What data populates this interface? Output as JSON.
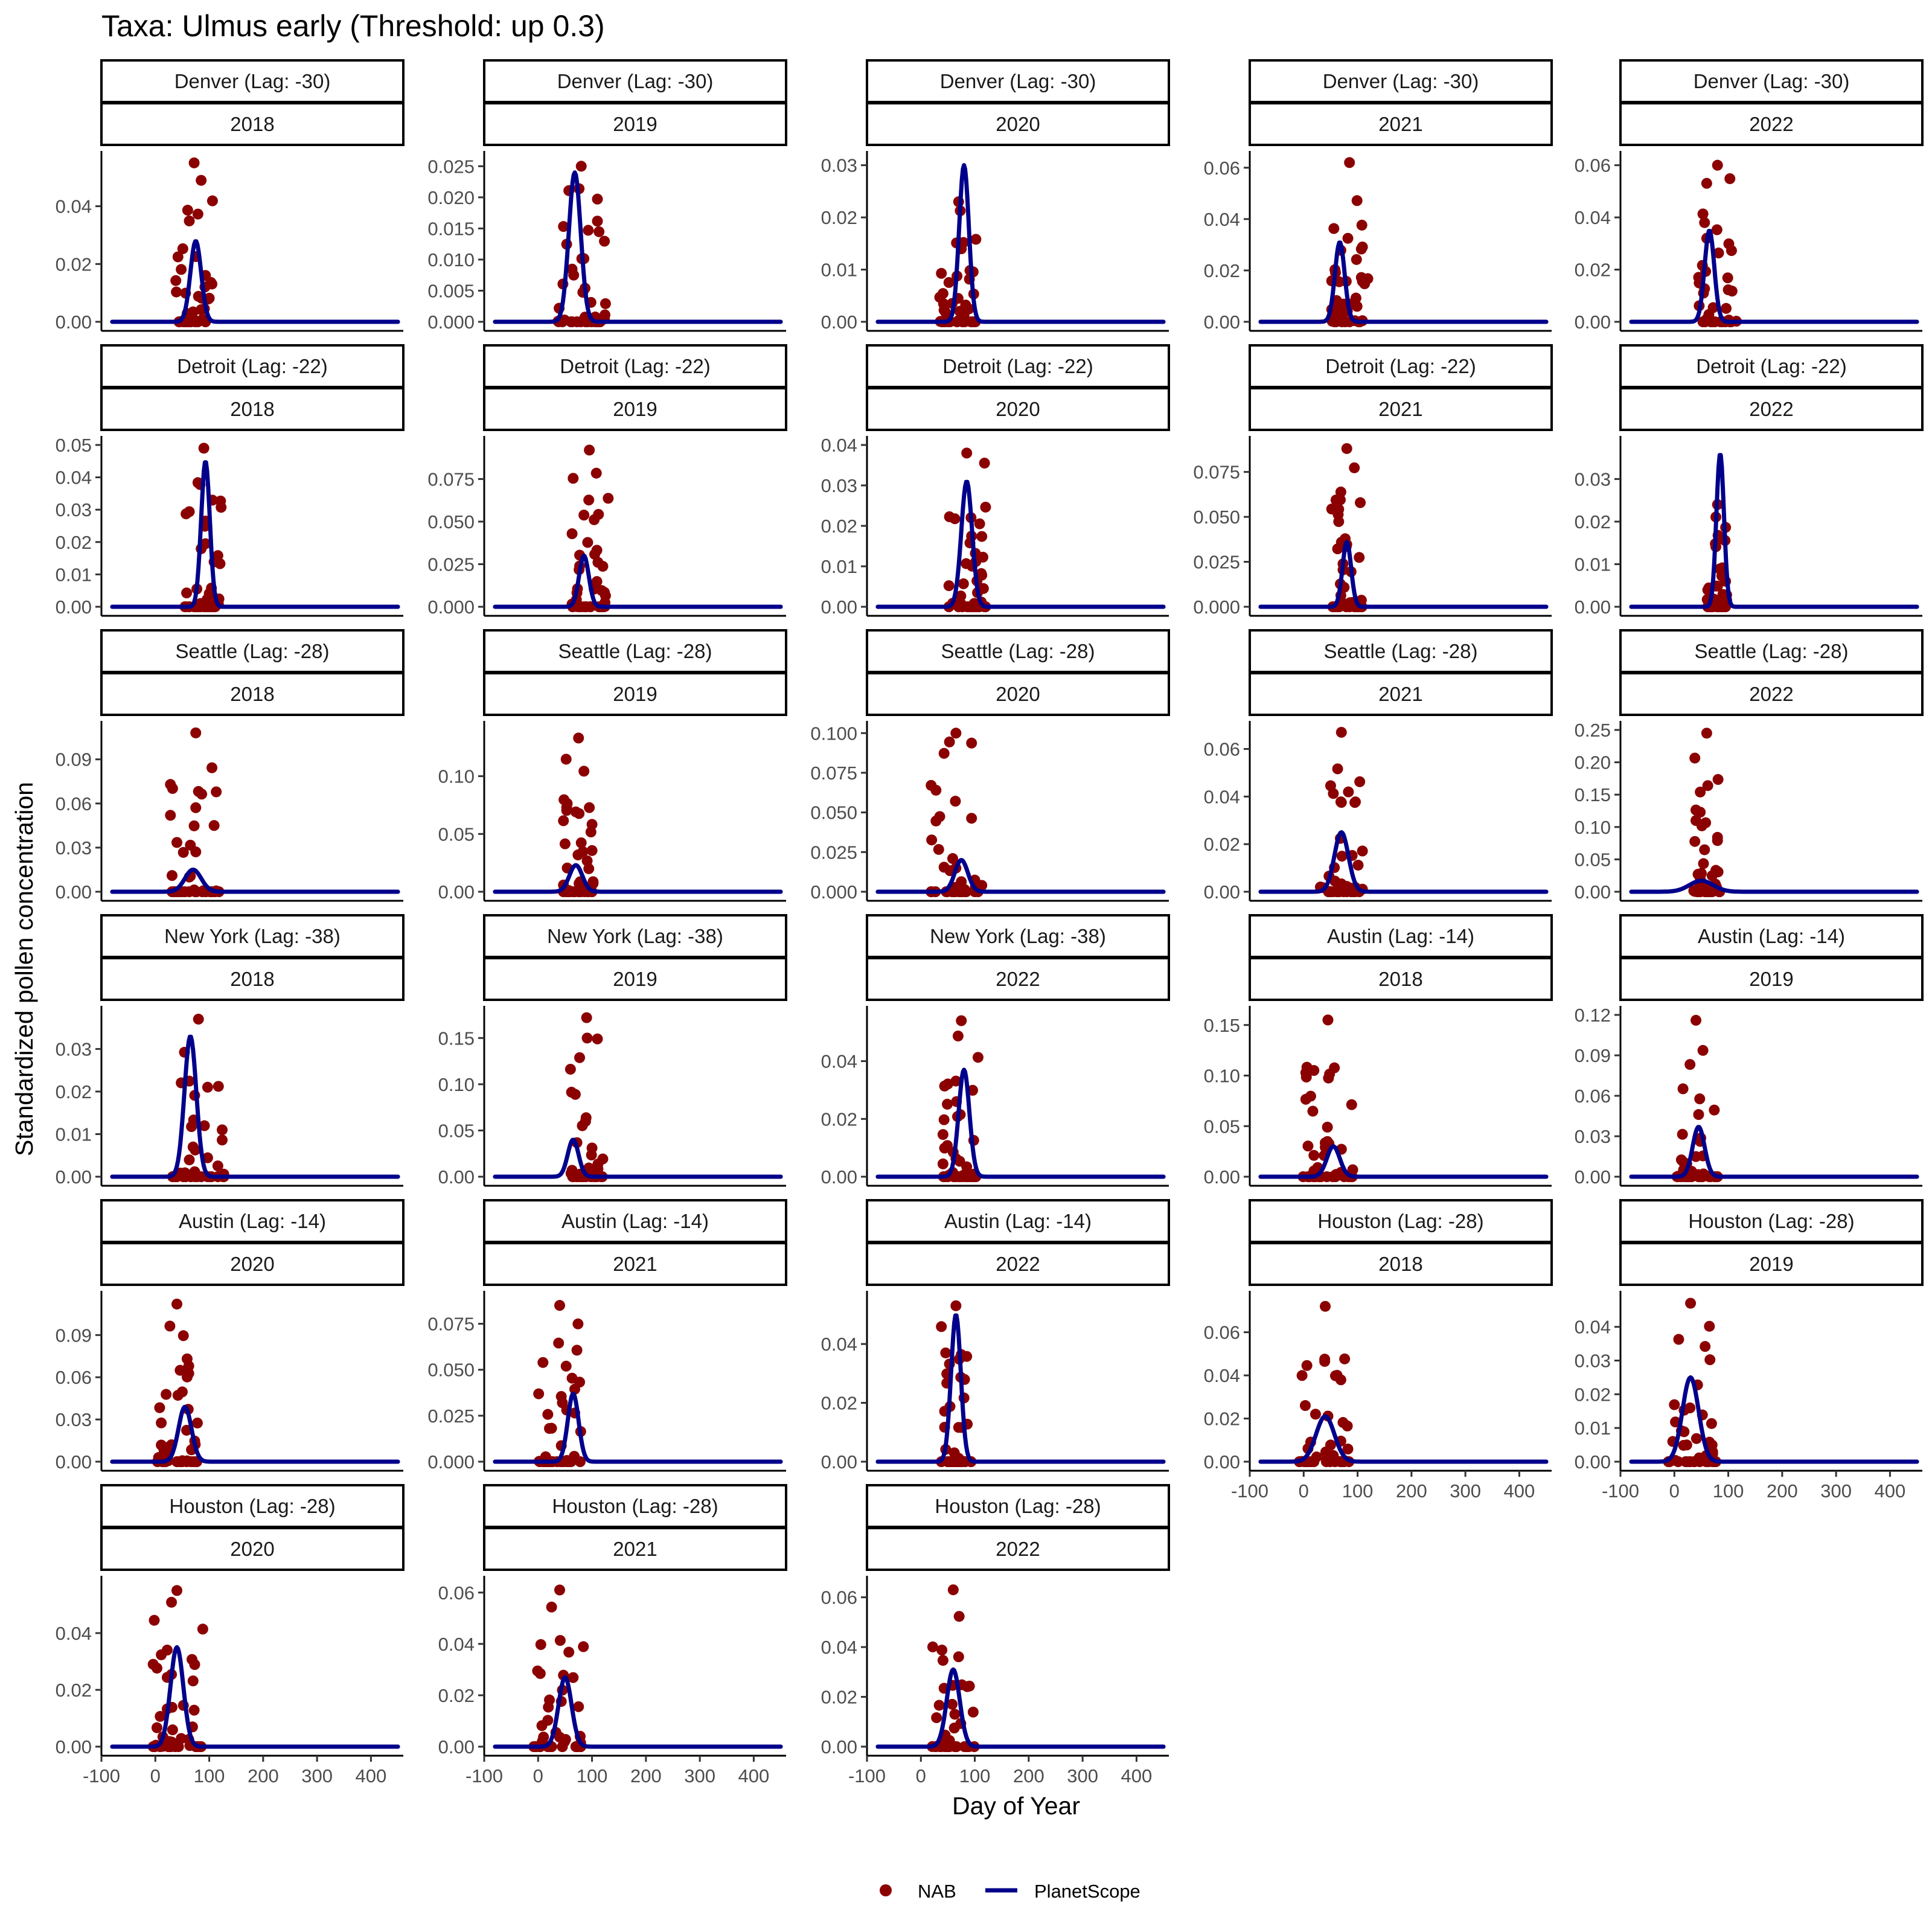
{
  "chart_data": {
    "type": "line",
    "title": "Taxa: Ulmus early (Threshold: up 0.3)",
    "xlabel": "Day of Year",
    "ylabel": "Standardized pollen concentration",
    "xlim": [
      -100,
      460
    ],
    "x_ticks": [
      -100,
      0,
      100,
      200,
      300,
      400
    ],
    "series_names": {
      "nab": "NAB",
      "planetscope": "PlanetScope"
    },
    "colors": {
      "nab": "#8b0000",
      "planetscope": "#00008b"
    },
    "legend_position": "bottom",
    "grid": false,
    "panels": [
      {
        "site": "Denver (Lag: -30)",
        "year": "2018",
        "ylim": [
          0,
          0.056
        ],
        "yticks": [
          "0.00",
          "0.02",
          "0.04"
        ],
        "ps_peak_day": 75,
        "ps_peak": 0.028,
        "ps_width": 10,
        "nab_peak_day": 72,
        "nab_max": 0.055,
        "nab_spread": 22
      },
      {
        "site": "Denver (Lag: -30)",
        "year": "2019",
        "ylim": [
          0,
          0.026
        ],
        "yticks": [
          "0.000",
          "0.005",
          "0.010",
          "0.015",
          "0.020",
          "0.025"
        ],
        "ps_peak_day": 68,
        "ps_peak": 0.024,
        "ps_width": 11,
        "nab_peak_day": 80,
        "nab_max": 0.025,
        "nab_spread": 30
      },
      {
        "site": "Denver (Lag: -30)",
        "year": "2020",
        "ylim": [
          0,
          0.031
        ],
        "yticks": [
          "0.00",
          "0.01",
          "0.02",
          "0.03"
        ],
        "ps_peak_day": 80,
        "ps_peak": 0.03,
        "ps_width": 9,
        "nab_peak_day": 70,
        "nab_max": 0.023,
        "nab_spread": 22
      },
      {
        "site": "Denver (Lag: -30)",
        "year": "2021",
        "ylim": [
          0,
          0.063
        ],
        "yticks": [
          "0.00",
          "0.02",
          "0.04",
          "0.06"
        ],
        "ps_peak_day": 67,
        "ps_peak": 0.031,
        "ps_width": 9,
        "nab_peak_day": 85,
        "nab_max": 0.062,
        "nab_spread": 22
      },
      {
        "site": "Denver (Lag: -30)",
        "year": "2022",
        "ylim": [
          0,
          0.062
        ],
        "yticks": [
          "0.00",
          "0.02",
          "0.04",
          "0.06"
        ],
        "ps_peak_day": 65,
        "ps_peak": 0.035,
        "ps_width": 9,
        "nab_peak_day": 80,
        "nab_max": 0.06,
        "nab_spread": 22
      },
      {
        "site": "Detroit (Lag: -22)",
        "year": "2018",
        "ylim": [
          0,
          0.05
        ],
        "yticks": [
          "0.00",
          "0.01",
          "0.02",
          "0.03",
          "0.04",
          "0.05"
        ],
        "ps_peak_day": 93,
        "ps_peak": 0.045,
        "ps_width": 8,
        "nab_peak_day": 90,
        "nab_max": 0.049,
        "nab_spread": 22
      },
      {
        "site": "Detroit (Lag: -22)",
        "year": "2019",
        "ylim": [
          0,
          0.095
        ],
        "yticks": [
          "0.000",
          "0.025",
          "0.050",
          "0.075"
        ],
        "ps_peak_day": 85,
        "ps_peak": 0.03,
        "ps_width": 9,
        "nab_peak_day": 95,
        "nab_max": 0.092,
        "nab_spread": 22
      },
      {
        "site": "Detroit (Lag: -22)",
        "year": "2020",
        "ylim": [
          0,
          0.04
        ],
        "yticks": [
          "0.00",
          "0.01",
          "0.02",
          "0.03",
          "0.04"
        ],
        "ps_peak_day": 85,
        "ps_peak": 0.031,
        "ps_width": 10,
        "nab_peak_day": 85,
        "nab_max": 0.038,
        "nab_spread": 22
      },
      {
        "site": "Detroit (Lag: -22)",
        "year": "2021",
        "ylim": [
          0,
          0.09
        ],
        "yticks": [
          "0.000",
          "0.025",
          "0.050",
          "0.075"
        ],
        "ps_peak_day": 80,
        "ps_peak": 0.036,
        "ps_width": 8,
        "nab_peak_day": 80,
        "nab_max": 0.088,
        "nab_spread": 18
      },
      {
        "site": "Detroit (Lag: -22)",
        "year": "2022",
        "ylim": [
          0,
          0.038
        ],
        "yticks": [
          "0.00",
          "0.01",
          "0.02",
          "0.03"
        ],
        "ps_peak_day": 85,
        "ps_peak": 0.036,
        "ps_width": 7,
        "nab_peak_day": 80,
        "nab_max": 0.024,
        "nab_spread": 12
      },
      {
        "site": "Seattle (Lag: -28)",
        "year": "2018",
        "ylim": [
          0,
          0.11
        ],
        "yticks": [
          "0.00",
          "0.03",
          "0.06",
          "0.09"
        ],
        "ps_peak_day": 70,
        "ps_peak": 0.015,
        "ps_width": 15,
        "nab_peak_day": 75,
        "nab_max": 0.108,
        "nab_spread": 30
      },
      {
        "site": "Seattle (Lag: -28)",
        "year": "2019",
        "ylim": [
          0,
          0.14
        ],
        "yticks": [
          "0.00",
          "0.05",
          "0.10"
        ],
        "ps_peak_day": 70,
        "ps_peak": 0.023,
        "ps_width": 12,
        "nab_peak_day": 75,
        "nab_max": 0.133,
        "nab_spread": 18
      },
      {
        "site": "Seattle (Lag: -28)",
        "year": "2020",
        "ylim": [
          0,
          0.102
        ],
        "yticks": [
          "0.000",
          "0.025",
          "0.050",
          "0.075",
          "0.100"
        ],
        "ps_peak_day": 75,
        "ps_peak": 0.02,
        "ps_width": 12,
        "nab_peak_day": 65,
        "nab_max": 0.1,
        "nab_spread": 30
      },
      {
        "site": "Seattle (Lag: -28)",
        "year": "2021",
        "ylim": [
          0,
          0.068
        ],
        "yticks": [
          "0.00",
          "0.02",
          "0.04",
          "0.06"
        ],
        "ps_peak_day": 70,
        "ps_peak": 0.025,
        "ps_width": 13,
        "nab_peak_day": 70,
        "nab_max": 0.067,
        "nab_spread": 25
      },
      {
        "site": "Seattle (Lag: -28)",
        "year": "2022",
        "ylim": [
          0,
          0.25
        ],
        "yticks": [
          "0.00",
          "0.05",
          "0.10",
          "0.15",
          "0.20",
          "0.25"
        ],
        "ps_peak_day": 50,
        "ps_peak": 0.017,
        "ps_width": 22,
        "nab_peak_day": 60,
        "nab_max": 0.245,
        "nab_spread": 15
      },
      {
        "site": "New York (Lag: -38)",
        "year": "2018",
        "ylim": [
          0,
          0.038
        ],
        "yticks": [
          "0.00",
          "0.01",
          "0.02",
          "0.03"
        ],
        "ps_peak_day": 65,
        "ps_peak": 0.033,
        "ps_width": 11,
        "nab_peak_day": 80,
        "nab_max": 0.037,
        "nab_spread": 30
      },
      {
        "site": "New York (Lag: -38)",
        "year": "2019",
        "ylim": [
          0,
          0.175
        ],
        "yticks": [
          "0.00",
          "0.05",
          "0.10",
          "0.15"
        ],
        "ps_peak_day": 65,
        "ps_peak": 0.04,
        "ps_width": 10,
        "nab_peak_day": 90,
        "nab_max": 0.172,
        "nab_spread": 20
      },
      {
        "site": "New York (Lag: -38)",
        "year": "2022",
        "ylim": [
          0,
          0.056
        ],
        "yticks": [
          "0.00",
          "0.02",
          "0.04"
        ],
        "ps_peak_day": 80,
        "ps_peak": 0.037,
        "ps_width": 10,
        "nab_peak_day": 75,
        "nab_max": 0.054,
        "nab_spread": 22
      },
      {
        "site": "Austin (Lag: -14)",
        "year": "2018",
        "ylim": [
          0,
          0.16
        ],
        "yticks": [
          "0.00",
          "0.05",
          "0.10",
          "0.15"
        ],
        "ps_peak_day": 55,
        "ps_peak": 0.03,
        "ps_width": 12,
        "nab_peak_day": 45,
        "nab_max": 0.155,
        "nab_spread": 30
      },
      {
        "site": "Austin (Lag: -14)",
        "year": "2019",
        "ylim": [
          0,
          0.12
        ],
        "yticks": [
          "0.00",
          "0.03",
          "0.06",
          "0.09",
          "0.12"
        ],
        "ps_peak_day": 45,
        "ps_peak": 0.037,
        "ps_width": 11,
        "nab_peak_day": 40,
        "nab_max": 0.116,
        "nab_spread": 25
      },
      {
        "site": "Austin (Lag: -14)",
        "year": "2020",
        "ylim": [
          0,
          0.115
        ],
        "yticks": [
          "0.00",
          "0.03",
          "0.06",
          "0.09"
        ],
        "ps_peak_day": 55,
        "ps_peak": 0.039,
        "ps_width": 12,
        "nab_peak_day": 40,
        "nab_max": 0.112,
        "nab_spread": 25
      },
      {
        "site": "Austin (Lag: -14)",
        "year": "2021",
        "ylim": [
          0,
          0.088
        ],
        "yticks": [
          "0.000",
          "0.025",
          "0.050",
          "0.075"
        ],
        "ps_peak_day": 65,
        "ps_peak": 0.037,
        "ps_width": 10,
        "nab_peak_day": 40,
        "nab_max": 0.085,
        "nab_spread": 25
      },
      {
        "site": "Austin (Lag: -14)",
        "year": "2022",
        "ylim": [
          0,
          0.055
        ],
        "yticks": [
          "0.00",
          "0.02",
          "0.04"
        ],
        "ps_peak_day": 65,
        "ps_peak": 0.05,
        "ps_width": 9,
        "nab_peak_day": 65,
        "nab_max": 0.053,
        "nab_spread": 18
      },
      {
        "site": "Houston (Lag: -28)",
        "year": "2018",
        "ylim": [
          0,
          0.075
        ],
        "yticks": [
          "0.00",
          "0.02",
          "0.04",
          "0.06"
        ],
        "ps_peak_day": 40,
        "ps_peak": 0.021,
        "ps_width": 17,
        "nab_peak_day": 40,
        "nab_max": 0.072,
        "nab_spread": 30
      },
      {
        "site": "Houston (Lag: -28)",
        "year": "2019",
        "ylim": [
          0,
          0.048
        ],
        "yticks": [
          "0.00",
          "0.01",
          "0.02",
          "0.03",
          "0.04"
        ],
        "ps_peak_day": 30,
        "ps_peak": 0.025,
        "ps_width": 15,
        "nab_peak_day": 30,
        "nab_max": 0.047,
        "nab_spread": 30
      },
      {
        "site": "Houston (Lag: -28)",
        "year": "2020",
        "ylim": [
          0,
          0.057
        ],
        "yticks": [
          "0.00",
          "0.02",
          "0.04"
        ],
        "ps_peak_day": 40,
        "ps_peak": 0.035,
        "ps_width": 12,
        "nab_peak_day": 40,
        "nab_max": 0.055,
        "nab_spread": 30
      },
      {
        "site": "Houston (Lag: -28)",
        "year": "2021",
        "ylim": [
          0,
          0.063
        ],
        "yticks": [
          "0.00",
          "0.02",
          "0.04",
          "0.06"
        ],
        "ps_peak_day": 50,
        "ps_peak": 0.027,
        "ps_width": 12,
        "nab_peak_day": 40,
        "nab_max": 0.061,
        "nab_spread": 30
      },
      {
        "site": "Houston (Lag: -28)",
        "year": "2022",
        "ylim": [
          0,
          0.065
        ],
        "yticks": [
          "0.00",
          "0.02",
          "0.04",
          "0.06"
        ],
        "ps_peak_day": 60,
        "ps_peak": 0.031,
        "ps_width": 12,
        "nab_peak_day": 60,
        "nab_max": 0.063,
        "nab_spread": 25
      }
    ]
  }
}
